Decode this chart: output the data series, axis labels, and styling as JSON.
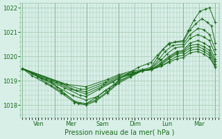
{
  "bg_color": "#d8efe8",
  "grid_color": "#a0c8b0",
  "line_color": "#1a6b1a",
  "marker_color": "#1a6b1a",
  "title": "Pression niveau de la mer( hPa )",
  "ylim": [
    1017.5,
    1022.2
  ],
  "yticks": [
    1018,
    1019,
    1020,
    1021,
    1022
  ],
  "day_labels": [
    "Ven",
    "Mer",
    "Sam",
    "Dim",
    "Lun",
    "Mar"
  ],
  "day_positions": [
    0.0,
    0.167,
    0.333,
    0.5,
    0.667,
    0.833
  ],
  "series": [
    [
      0.0,
      1019.5,
      0.05,
      1019.3,
      0.1,
      1019.1,
      0.15,
      1018.95,
      0.2,
      1018.6,
      0.27,
      1018.15,
      0.33,
      1018.05,
      0.38,
      1018.3,
      0.43,
      1018.6,
      0.48,
      1018.85,
      0.5,
      1019.05,
      0.55,
      1019.3,
      0.6,
      1019.55,
      0.65,
      1019.7,
      0.667,
      1019.75,
      0.7,
      1020.05,
      0.73,
      1020.3,
      0.76,
      1020.5,
      0.79,
      1020.6,
      0.833,
      1020.65,
      0.86,
      1021.05,
      0.89,
      1021.5,
      0.92,
      1021.85,
      0.95,
      1021.95,
      0.97,
      1022.0,
      1.0,
      1021.4
    ],
    [
      0.0,
      1019.5,
      0.05,
      1019.2,
      0.12,
      1018.9,
      0.2,
      1018.5,
      0.27,
      1018.1,
      0.33,
      1018.05,
      0.38,
      1018.2,
      0.44,
      1018.55,
      0.5,
      1018.95,
      0.56,
      1019.2,
      0.62,
      1019.45,
      0.667,
      1019.55,
      0.7,
      1019.95,
      0.73,
      1020.3,
      0.76,
      1020.55,
      0.833,
      1020.6,
      0.87,
      1021.1,
      0.9,
      1021.35,
      0.93,
      1021.55,
      0.96,
      1021.4,
      0.98,
      1021.25,
      1.0,
      1020.55
    ],
    [
      0.0,
      1019.5,
      0.08,
      1019.15,
      0.15,
      1018.8,
      0.22,
      1018.45,
      0.29,
      1018.05,
      0.33,
      1018.0,
      0.38,
      1018.15,
      0.44,
      1018.5,
      0.5,
      1018.9,
      0.56,
      1019.15,
      0.62,
      1019.4,
      0.667,
      1019.5,
      0.71,
      1019.9,
      0.74,
      1020.2,
      0.78,
      1020.45,
      0.833,
      1020.5,
      0.87,
      1020.9,
      0.91,
      1021.15,
      0.94,
      1021.1,
      0.97,
      1020.9,
      1.0,
      1020.3
    ],
    [
      0.0,
      1019.5,
      0.1,
      1019.1,
      0.18,
      1018.75,
      0.26,
      1018.4,
      0.33,
      1018.2,
      0.39,
      1018.35,
      0.45,
      1018.7,
      0.5,
      1019.0,
      0.56,
      1019.2,
      0.62,
      1019.4,
      0.667,
      1019.5,
      0.72,
      1019.85,
      0.75,
      1020.1,
      0.79,
      1020.35,
      0.833,
      1020.4,
      0.87,
      1020.75,
      0.91,
      1020.9,
      0.94,
      1020.8,
      0.97,
      1020.65,
      1.0,
      1020.1
    ],
    [
      0.0,
      1019.5,
      0.12,
      1019.05,
      0.22,
      1018.7,
      0.3,
      1018.4,
      0.33,
      1018.35,
      0.4,
      1018.65,
      0.47,
      1018.95,
      0.5,
      1019.1,
      0.56,
      1019.25,
      0.62,
      1019.4,
      0.667,
      1019.45,
      0.72,
      1019.75,
      0.76,
      1020.0,
      0.8,
      1020.2,
      0.833,
      1020.25,
      0.87,
      1020.55,
      0.91,
      1020.65,
      0.94,
      1020.55,
      0.97,
      1020.4,
      1.0,
      1019.9
    ],
    [
      0.0,
      1019.5,
      0.15,
      1019.0,
      0.25,
      1018.65,
      0.33,
      1018.45,
      0.41,
      1018.75,
      0.5,
      1019.1,
      0.56,
      1019.25,
      0.62,
      1019.4,
      0.667,
      1019.45,
      0.72,
      1019.7,
      0.76,
      1019.95,
      0.8,
      1020.15,
      0.833,
      1020.2,
      0.87,
      1020.45,
      0.91,
      1020.5,
      0.94,
      1020.4,
      0.97,
      1020.25,
      1.0,
      1019.8
    ],
    [
      0.0,
      1019.5,
      0.18,
      1018.95,
      0.28,
      1018.6,
      0.33,
      1018.55,
      0.42,
      1018.85,
      0.5,
      1019.15,
      0.57,
      1019.3,
      0.62,
      1019.4,
      0.667,
      1019.45,
      0.72,
      1019.65,
      0.76,
      1019.9,
      0.8,
      1020.1,
      0.833,
      1020.15,
      0.87,
      1020.35,
      0.91,
      1020.4,
      0.94,
      1020.3,
      0.97,
      1020.15,
      1.0,
      1019.7
    ],
    [
      0.0,
      1019.5,
      0.2,
      1018.9,
      0.3,
      1018.65,
      0.33,
      1018.65,
      0.43,
      1018.95,
      0.5,
      1019.2,
      0.57,
      1019.35,
      0.62,
      1019.4,
      0.667,
      1019.45,
      0.72,
      1019.6,
      0.76,
      1019.8,
      0.8,
      1020.0,
      0.833,
      1020.05,
      0.87,
      1020.25,
      0.91,
      1020.3,
      0.94,
      1020.2,
      0.97,
      1020.05,
      1.0,
      1019.6
    ],
    [
      0.0,
      1019.5,
      0.23,
      1018.85,
      0.33,
      1018.75,
      0.44,
      1019.05,
      0.5,
      1019.25,
      0.57,
      1019.4,
      0.62,
      1019.45,
      0.667,
      1019.45,
      0.72,
      1019.6,
      0.76,
      1019.75,
      0.8,
      1019.9,
      0.833,
      1019.95,
      0.87,
      1020.15,
      0.91,
      1020.2,
      0.94,
      1020.1,
      0.97,
      1019.95,
      1.0,
      1019.55
    ]
  ]
}
